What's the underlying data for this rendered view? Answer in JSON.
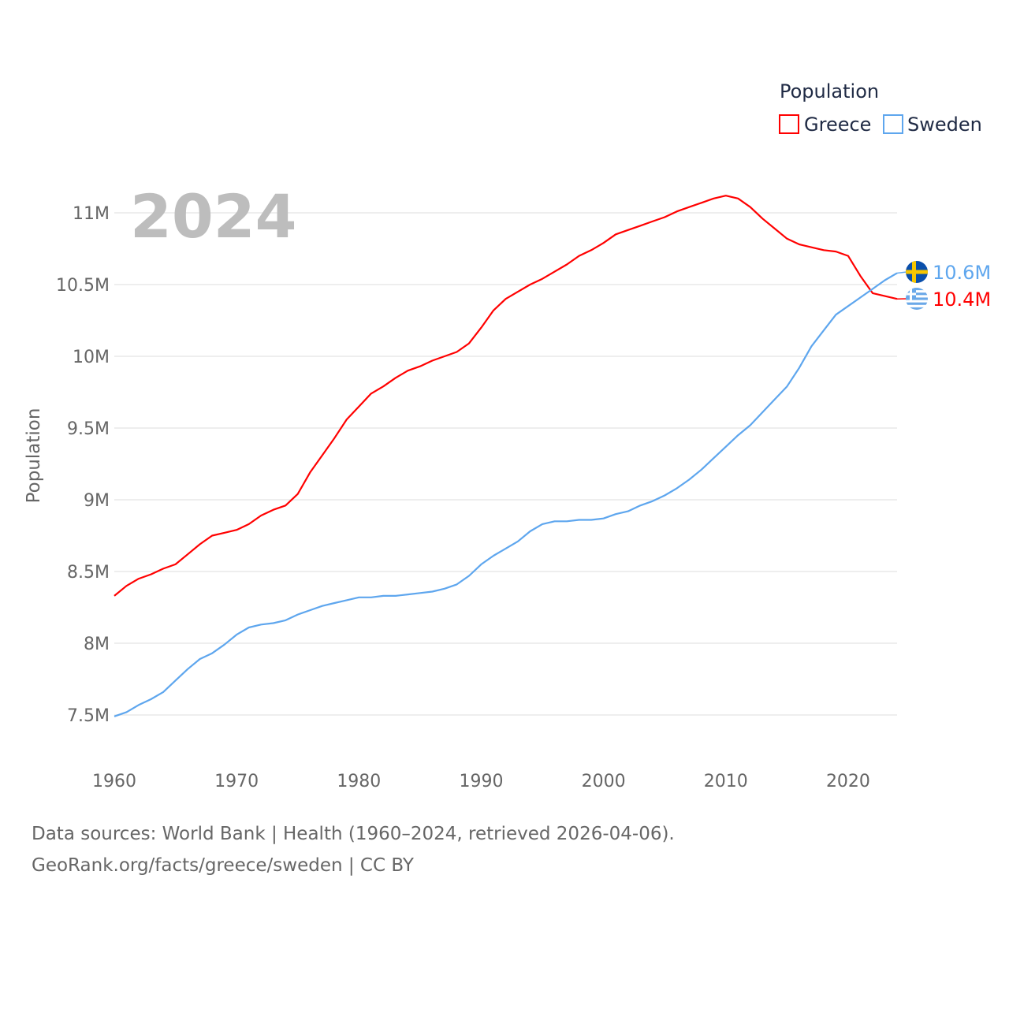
{
  "chart_data": {
    "type": "line",
    "title": "",
    "year_label": "2024",
    "xlabel": "",
    "ylabel": "Population",
    "xlim": [
      1960,
      2024
    ],
    "ylim": [
      7.5,
      11.0
    ],
    "x_ticks": [
      "1960",
      "1970",
      "1980",
      "1990",
      "2000",
      "2010",
      "2020"
    ],
    "y_ticks": [
      {
        "value": 7.5,
        "label": "7.5M"
      },
      {
        "value": 8.0,
        "label": "8M"
      },
      {
        "value": 8.5,
        "label": "8.5M"
      },
      {
        "value": 9.0,
        "label": "9M"
      },
      {
        "value": 9.5,
        "label": "9.5M"
      },
      {
        "value": 10.0,
        "label": "10M"
      },
      {
        "value": 10.5,
        "label": "10.5M"
      },
      {
        "value": 11.0,
        "label": "11M"
      }
    ],
    "grid": true,
    "legend": {
      "title": "Population",
      "placement": "top-right"
    },
    "x": [
      1960,
      1961,
      1962,
      1963,
      1964,
      1965,
      1966,
      1967,
      1968,
      1969,
      1970,
      1971,
      1972,
      1973,
      1974,
      1975,
      1976,
      1977,
      1978,
      1979,
      1980,
      1981,
      1982,
      1983,
      1984,
      1985,
      1986,
      1987,
      1988,
      1989,
      1990,
      1991,
      1992,
      1993,
      1994,
      1995,
      1996,
      1997,
      1998,
      1999,
      2000,
      2001,
      2002,
      2003,
      2004,
      2005,
      2006,
      2007,
      2008,
      2009,
      2010,
      2011,
      2012,
      2013,
      2014,
      2015,
      2016,
      2017,
      2018,
      2019,
      2020,
      2021,
      2022,
      2023,
      2024
    ],
    "series": [
      {
        "name": "Greece",
        "color": "#ff0000",
        "end_label": "10.4M",
        "flag": "greece-flag",
        "values": [
          8.33,
          8.4,
          8.45,
          8.48,
          8.52,
          8.55,
          8.62,
          8.69,
          8.75,
          8.77,
          8.79,
          8.83,
          8.89,
          8.93,
          8.96,
          9.04,
          9.19,
          9.31,
          9.43,
          9.56,
          9.65,
          9.74,
          9.79,
          9.85,
          9.9,
          9.93,
          9.97,
          10.0,
          10.03,
          10.09,
          10.2,
          10.32,
          10.4,
          10.45,
          10.5,
          10.54,
          10.59,
          10.64,
          10.7,
          10.74,
          10.79,
          10.85,
          10.88,
          10.91,
          10.94,
          10.97,
          11.01,
          11.04,
          11.07,
          11.1,
          11.12,
          11.1,
          11.04,
          10.96,
          10.89,
          10.82,
          10.78,
          10.76,
          10.74,
          10.73,
          10.7,
          10.56,
          10.44,
          10.42,
          10.4
        ]
      },
      {
        "name": "Sweden",
        "color": "#5ea6ee",
        "end_label": "10.6M",
        "flag": "sweden-flag",
        "values": [
          7.49,
          7.52,
          7.57,
          7.61,
          7.66,
          7.74,
          7.82,
          7.89,
          7.93,
          7.99,
          8.06,
          8.11,
          8.13,
          8.14,
          8.16,
          8.2,
          8.23,
          8.26,
          8.28,
          8.3,
          8.32,
          8.32,
          8.33,
          8.33,
          8.34,
          8.35,
          8.36,
          8.38,
          8.41,
          8.47,
          8.55,
          8.61,
          8.66,
          8.71,
          8.78,
          8.83,
          8.85,
          8.85,
          8.86,
          8.86,
          8.87,
          8.9,
          8.92,
          8.96,
          8.99,
          9.03,
          9.08,
          9.14,
          9.21,
          9.29,
          9.37,
          9.45,
          9.52,
          9.61,
          9.7,
          9.79,
          9.92,
          10.07,
          10.18,
          10.29,
          10.35,
          10.41,
          10.47,
          10.53,
          10.58
        ]
      }
    ]
  },
  "footer": {
    "line1": "Data sources: World Bank | Health (1960–2024, retrieved 2026-04-06).",
    "line2": "GeoRank.org/facts/greece/sweden | CC BY"
  }
}
